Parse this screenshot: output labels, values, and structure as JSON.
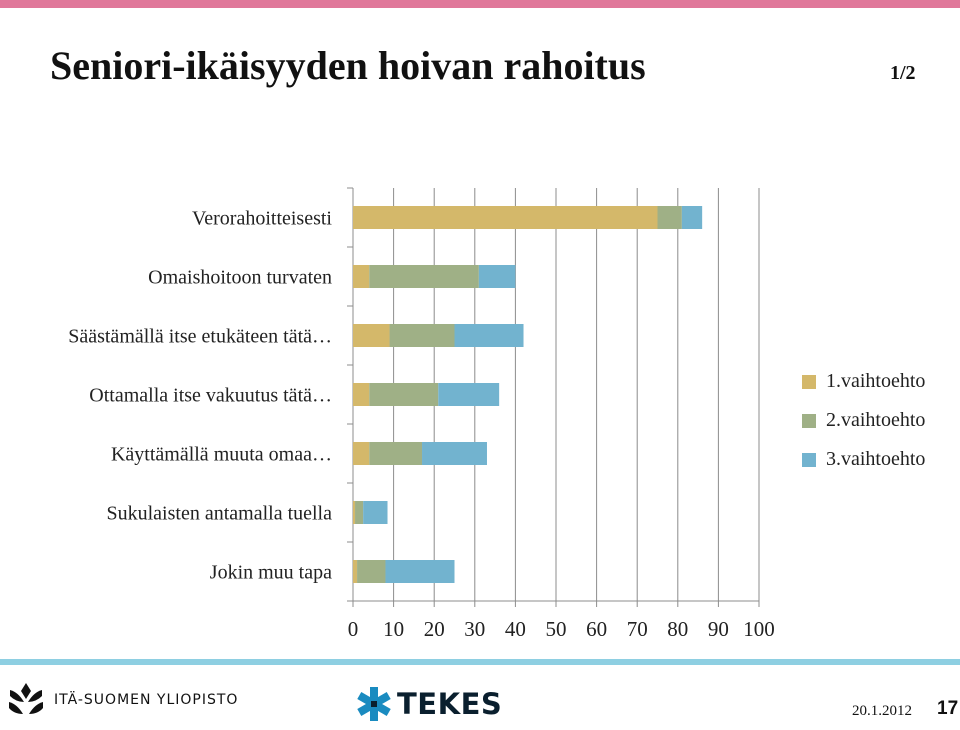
{
  "header": {
    "title": "Seniori-ikäisyyden hoivan rahoitus",
    "page_indicator": "1/2"
  },
  "chart_data": {
    "type": "bar",
    "orientation": "horizontal",
    "stacked": true,
    "categories": [
      "Verorahoitteisesti",
      "Omaishoitoon turvaten",
      "Säästämällä itse etukäteen tätä…",
      "Ottamalla itse vakuutus tätä…",
      "Käyttämällä muuta omaa…",
      "Sukulaisten antamalla tuella",
      "Jokin muu tapa"
    ],
    "series": [
      {
        "name": "1.vaihtoehto",
        "color": "#d4b86a",
        "values": [
          75,
          4,
          9,
          4,
          4,
          0.5,
          1
        ]
      },
      {
        "name": "2.vaihtoehto",
        "color": "#9fb086",
        "values": [
          6,
          27,
          16,
          17,
          13,
          2,
          7
        ]
      },
      {
        "name": "3.vaihtoehto",
        "color": "#72b3cf",
        "values": [
          5,
          9,
          17,
          15,
          16,
          6,
          17
        ]
      }
    ],
    "xlim": [
      0,
      100
    ],
    "xticks": [
      "0",
      "10",
      "20",
      "30",
      "40",
      "50",
      "60",
      "70",
      "80",
      "90",
      "100"
    ],
    "grid": "vertical",
    "legend": "right"
  },
  "footer": {
    "university": "ITÄ-SUOMEN YLIOPISTO",
    "tekes": "TEKES",
    "date": "20.1.2012",
    "page_number": "17"
  }
}
